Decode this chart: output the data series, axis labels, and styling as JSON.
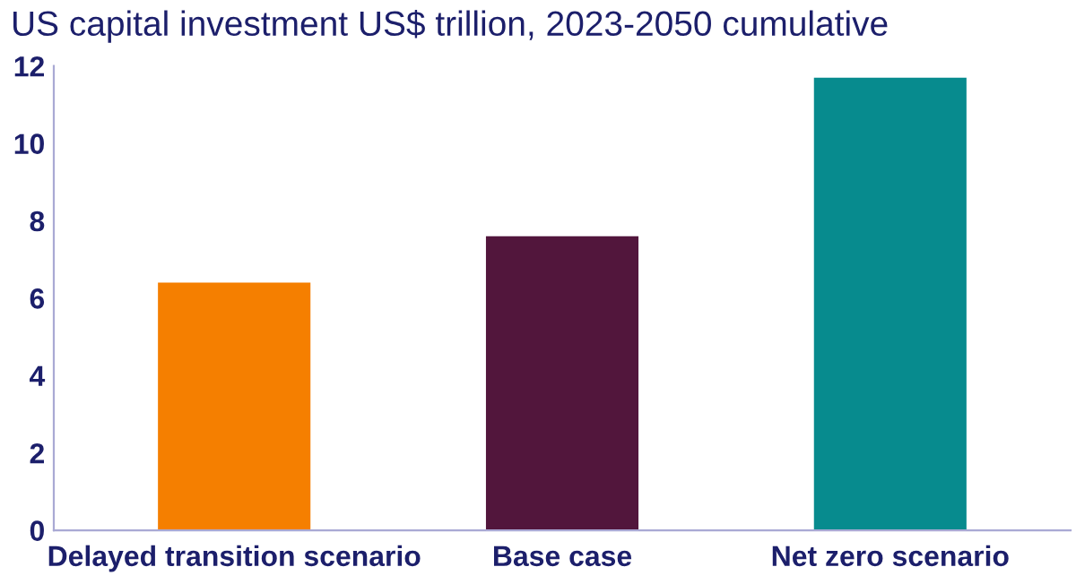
{
  "chart_data": {
    "type": "bar",
    "title": "US capital investment US$ trillion, 2023-2050 cumulative",
    "categories": [
      "Delayed transition scenario",
      "Base case",
      "Net zero scenario"
    ],
    "values": [
      6.4,
      7.6,
      11.7
    ],
    "colors": [
      "#f57f00",
      "#52163c",
      "#078b8e"
    ],
    "ylim": [
      0,
      12
    ],
    "yticks": [
      0,
      2,
      4,
      6,
      8,
      10,
      12
    ],
    "grid": false,
    "legend": false
  }
}
